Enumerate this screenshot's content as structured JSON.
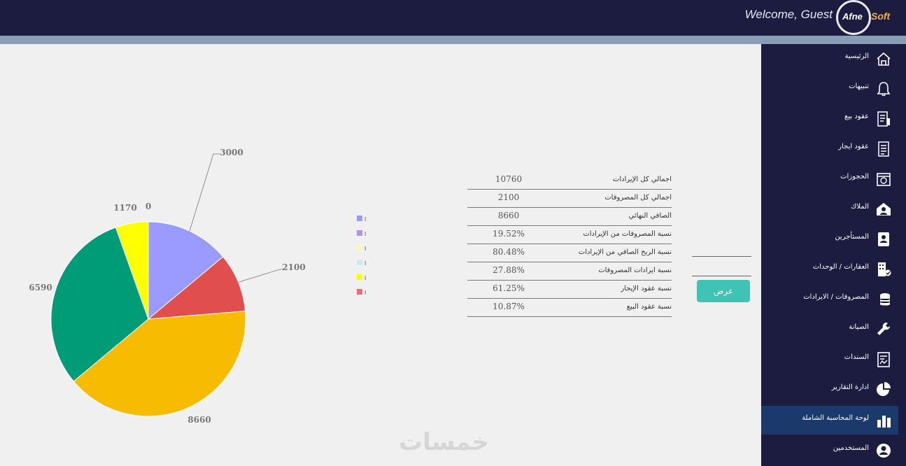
{
  "header": {
    "welcome": "Welcome, Guest",
    "logo_part1": "Afne",
    "logo_part2": "Soft"
  },
  "sidebar": {
    "items": [
      {
        "label": "الرئيسية",
        "icon": "home-icon"
      },
      {
        "label": "تنبيهات",
        "icon": "bell-icon"
      },
      {
        "label": "عقود بيع",
        "icon": "sale-contract-icon"
      },
      {
        "label": "عقود ايجار",
        "icon": "rent-contract-icon"
      },
      {
        "label": "الحجوزات",
        "icon": "calendar-icon"
      },
      {
        "label": "الملاك",
        "icon": "owner-icon"
      },
      {
        "label": "المستأجرين",
        "icon": "tenant-icon"
      },
      {
        "label": "العقارات / الوحدات",
        "icon": "building-icon"
      },
      {
        "label": "المصروفات / الايرادات",
        "icon": "coins-icon"
      },
      {
        "label": "الصيانة",
        "icon": "wrench-icon"
      },
      {
        "label": "السندات",
        "icon": "voucher-icon"
      },
      {
        "label": "ادارة التقارير",
        "icon": "pie-chart-icon"
      },
      {
        "label": "لوحة المحاسبة الشاملة",
        "icon": "bar-chart-icon",
        "active": true
      },
      {
        "label": "المستخدمين",
        "icon": "user-icon"
      }
    ]
  },
  "stats": [
    {
      "label": "اجمالي كل الإيرادات",
      "value": "10760"
    },
    {
      "label": "اجمالي كل المصروفات",
      "value": "2100"
    },
    {
      "label": "الصافي النهائي",
      "value": "8660"
    },
    {
      "label": "نسبة المصروفات من الإيرادات",
      "value": "19.52%"
    },
    {
      "label": "نسبة الربح الصافي من الإيرادات",
      "value": "80.48%"
    },
    {
      "label": "نسبة ايرادات المصروفات",
      "value": "27.88%"
    },
    {
      "label": "نسبة عقود الإيجار",
      "value": "61.25%"
    },
    {
      "label": "نسبة عقود البيع",
      "value": "10.87%"
    }
  ],
  "form": {
    "show_button": "عرض"
  },
  "watermark": "خمسات",
  "chart_data": {
    "type": "pie",
    "slices": [
      {
        "value": 3000,
        "label": "3000",
        "color": "#9b9bff"
      },
      {
        "value": 2100,
        "label": "2100",
        "color": "#e04e4e"
      },
      {
        "value": 8660,
        "label": "8660",
        "color": "#f7bb00"
      },
      {
        "value": 6590,
        "label": "6590",
        "color": "#009b77"
      },
      {
        "value": 1170,
        "label": "1170",
        "color": "#ffff00"
      },
      {
        "value": 0,
        "label": "0",
        "color": "#c6e8ee"
      }
    ],
    "legend": [
      {
        "text": "ا",
        "color": "#9b9bff"
      },
      {
        "text": "ا",
        "color": "#b28ff3"
      },
      {
        "text": "ا",
        "color": "#f8f8b8"
      },
      {
        "text": "ا",
        "color": "#c6eef3"
      },
      {
        "text": "ا",
        "color": "#ffff00"
      },
      {
        "text": "ا",
        "color": "#e87070"
      }
    ],
    "legend_position": "right"
  }
}
